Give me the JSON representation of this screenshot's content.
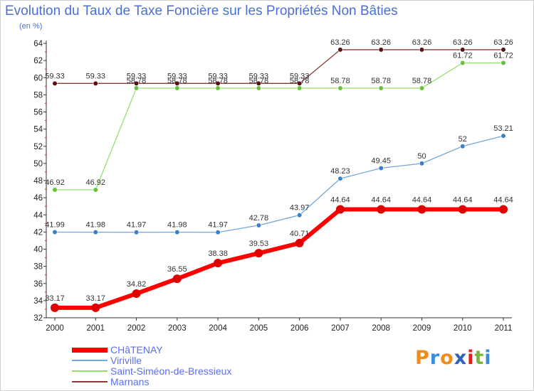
{
  "title": "Evolution du Taux de Taxe Foncière sur les Propriétés Non Bâties",
  "unit": "(en %)",
  "logo": {
    "text": "Proxiti",
    "letters": [
      "P",
      "r",
      "o",
      "x",
      "i",
      "t",
      "i"
    ],
    "colors": [
      "#f08c1c",
      "#3b8fd8",
      "#f08c1c",
      "#2f5fbf",
      "#e0201e",
      "#7ab83a",
      "#3b8fd8"
    ]
  },
  "chart_data": {
    "type": "line",
    "title": "Evolution du Taux de Taxe Foncière sur les Propriétés Non Bâties",
    "ylabel": "(en %)",
    "xlabel": "",
    "x": [
      "2000",
      "2001",
      "2002",
      "2003",
      "2004",
      "2005",
      "2006",
      "2007",
      "2008",
      "2009",
      "2010",
      "2011"
    ],
    "ylim": [
      32,
      64
    ],
    "yticks": [
      "32",
      "34",
      "36",
      "38",
      "40",
      "42",
      "44",
      "46",
      "48",
      "50",
      "52",
      "54",
      "56",
      "58",
      "60",
      "62",
      "64"
    ],
    "grid": false,
    "legend_position": "bottom-left",
    "series": [
      {
        "name": "CHâTENAY",
        "color": "#ff0000",
        "marker": "#e00000",
        "width": 6,
        "values": [
          33.17,
          33.17,
          34.82,
          36.55,
          38.38,
          39.53,
          40.71,
          44.64,
          44.64,
          44.64,
          44.64,
          44.64
        ],
        "labels": [
          "33.17",
          "33.17",
          "34.82",
          "36.55",
          "38.38",
          "39.53",
          "40.71",
          "44.64",
          "44.64",
          "44.64",
          "44.64",
          "44.64"
        ]
      },
      {
        "name": "Viriville",
        "color": "#70a7d8",
        "marker": "#3a80c8",
        "width": 1.3,
        "values": [
          41.99,
          41.98,
          41.97,
          41.98,
          41.97,
          42.78,
          43.97,
          48.23,
          49.45,
          50,
          52,
          53.21
        ],
        "labels": [
          "41.99",
          "41.98",
          "41.97",
          "41.98",
          "41.97",
          "42.78",
          "43.97",
          "48.23",
          "49.45",
          "50",
          "52",
          "53.21"
        ]
      },
      {
        "name": "Saint-Siméon-de-Bressieux",
        "color": "#96e06a",
        "marker": "#66c23a",
        "width": 1.3,
        "values": [
          46.92,
          46.92,
          58.78,
          58.78,
          58.78,
          58.78,
          58.78,
          58.78,
          58.78,
          58.78,
          61.72,
          61.72
        ],
        "labels": [
          "46.92",
          "46.92",
          "58.78",
          "58.78",
          "58.78",
          "58.78",
          "58.78",
          "58.78",
          "58.78",
          "58.78",
          "61.72",
          "61.72"
        ]
      },
      {
        "name": "Marnans",
        "color": "#8a3a3a",
        "marker": "#5a1010",
        "width": 1.3,
        "values": [
          59.33,
          59.33,
          59.33,
          59.33,
          59.33,
          59.33,
          59.33,
          63.26,
          63.26,
          63.26,
          63.26,
          63.26
        ],
        "labels": [
          "59.33",
          "59.33",
          "59.33",
          "59.33",
          "59.33",
          "59.33",
          "59.33",
          "63.26",
          "63.26",
          "63.26",
          "63.26",
          "63.26"
        ]
      }
    ]
  }
}
